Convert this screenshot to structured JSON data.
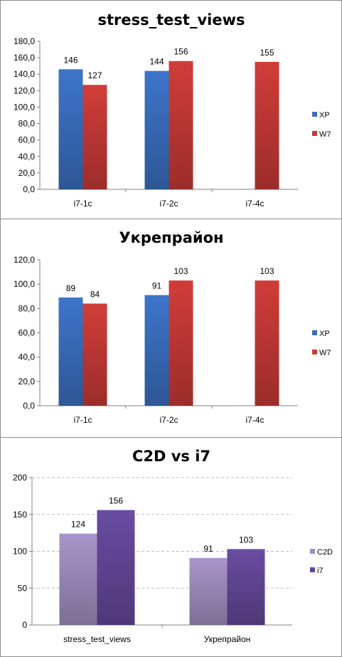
{
  "chart_data": [
    {
      "type": "bar",
      "title": "stress_test_views",
      "categories": [
        "i7-1c",
        "i7-2c",
        "i7-4c"
      ],
      "series": [
        {
          "name": "XP",
          "values": [
            146,
            144,
            null
          ],
          "color": "#3a6fc0"
        },
        {
          "name": "W7",
          "values": [
            127,
            156,
            155
          ],
          "color": "#c73a36"
        }
      ],
      "data_labels": [
        [
          "146",
          "144",
          ""
        ],
        [
          "127",
          "156",
          "155"
        ]
      ],
      "ylim": [
        0,
        180
      ],
      "yticks": [
        "0,0",
        "20,0",
        "40,0",
        "60,0",
        "80,0",
        "100,0",
        "120,0",
        "140,0",
        "160,0",
        "180,0"
      ],
      "grid": false,
      "legend": "right"
    },
    {
      "type": "bar",
      "title": "Укрепрайон",
      "categories": [
        "i7-1c",
        "i7-2c",
        "i7-4c"
      ],
      "series": [
        {
          "name": "XP",
          "values": [
            89,
            91,
            null
          ],
          "color": "#3a6fc0"
        },
        {
          "name": "W7",
          "values": [
            84,
            103,
            103
          ],
          "color": "#c73a36"
        }
      ],
      "data_labels": [
        [
          "89",
          "91",
          ""
        ],
        [
          "84",
          "103",
          "103"
        ]
      ],
      "ylim": [
        0,
        120
      ],
      "yticks": [
        "0,0",
        "20,0",
        "40,0",
        "60,0",
        "80,0",
        "100,0",
        "120,0"
      ],
      "grid": false,
      "legend": "right"
    },
    {
      "type": "bar",
      "title": "C2D vs i7",
      "categories": [
        "stress_test_views",
        "Укрепрайон"
      ],
      "series": [
        {
          "name": "C2D",
          "values": [
            124,
            91
          ],
          "color": "#9f8fbf"
        },
        {
          "name": "i7",
          "values": [
            156,
            103
          ],
          "color": "#65489a"
        }
      ],
      "data_labels": [
        [
          "124",
          "91"
        ],
        [
          "156",
          "103"
        ]
      ],
      "ylim": [
        0,
        200
      ],
      "yticks": [
        "0",
        "50",
        "100",
        "150",
        "200"
      ],
      "grid": true,
      "legend": "right"
    }
  ]
}
